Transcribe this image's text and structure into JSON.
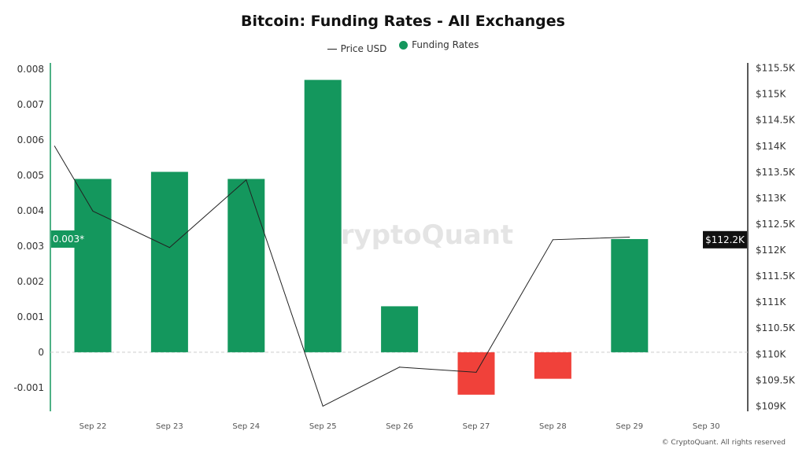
{
  "chart_data": {
    "type": "bar",
    "title": "Bitcoin: Funding Rates - All Exchanges",
    "categories": [
      "Sep 22",
      "Sep 23",
      "Sep 24",
      "Sep 25",
      "Sep 26",
      "Sep 27",
      "Sep 28",
      "Sep 29",
      "Sep 30"
    ],
    "series": [
      {
        "name": "Funding Rates",
        "type": "bar",
        "axis": "left",
        "values": [
          0.0049,
          0.0051,
          0.0049,
          0.0077,
          0.0013,
          -0.0012,
          -0.00075,
          0.0032,
          null
        ]
      },
      {
        "name": "Price USD",
        "type": "line",
        "axis": "right",
        "x": [
          "Sep 21",
          "Sep 22",
          "Sep 23",
          "Sep 24",
          "Sep 25",
          "Sep 26",
          "Sep 27",
          "Sep 28",
          "Sep 29"
        ],
        "values": [
          114000,
          112750,
          112050,
          113350,
          109000,
          109750,
          109650,
          112200,
          112250
        ]
      }
    ],
    "left_axis": {
      "ylim": [
        -0.00167,
        0.00818
      ],
      "ticks": [
        "0.008",
        "0.007",
        "0.006",
        "0.005",
        "0.004",
        "0.003",
        "0.002",
        "0.001",
        "0",
        "-0.001"
      ],
      "tick_values": [
        0.008,
        0.007,
        0.006,
        0.005,
        0.004,
        0.003,
        0.002,
        0.001,
        0,
        -0.001
      ],
      "current_label": "0.003*",
      "current_value": 0.0032
    },
    "right_axis": {
      "ylim": [
        108900,
        115600
      ],
      "ticks": [
        "$115.5K",
        "$115K",
        "$114.5K",
        "$114K",
        "$113.5K",
        "$113K",
        "$112.5K",
        "$112K",
        "$111.5K",
        "$111K",
        "$110.5K",
        "$110K",
        "$109.5K",
        "$109K"
      ],
      "tick_values": [
        115500,
        115000,
        114500,
        114000,
        113500,
        113000,
        112500,
        112000,
        111500,
        111000,
        110500,
        110000,
        109500,
        109000
      ],
      "current_label": "$112.2K",
      "current_value": 112200
    },
    "legend": {
      "placement": "top-center",
      "items": [
        "Price USD",
        "Funding Rates"
      ]
    },
    "colors": {
      "positive": "#14975d",
      "negative": "#f0413a",
      "line": "#222222",
      "left_axis": "#14975d"
    },
    "grid": false,
    "zero_line": "dashed"
  },
  "watermark": "CryptoQuant",
  "footer": "© CryptoQuant. All rights reserved"
}
